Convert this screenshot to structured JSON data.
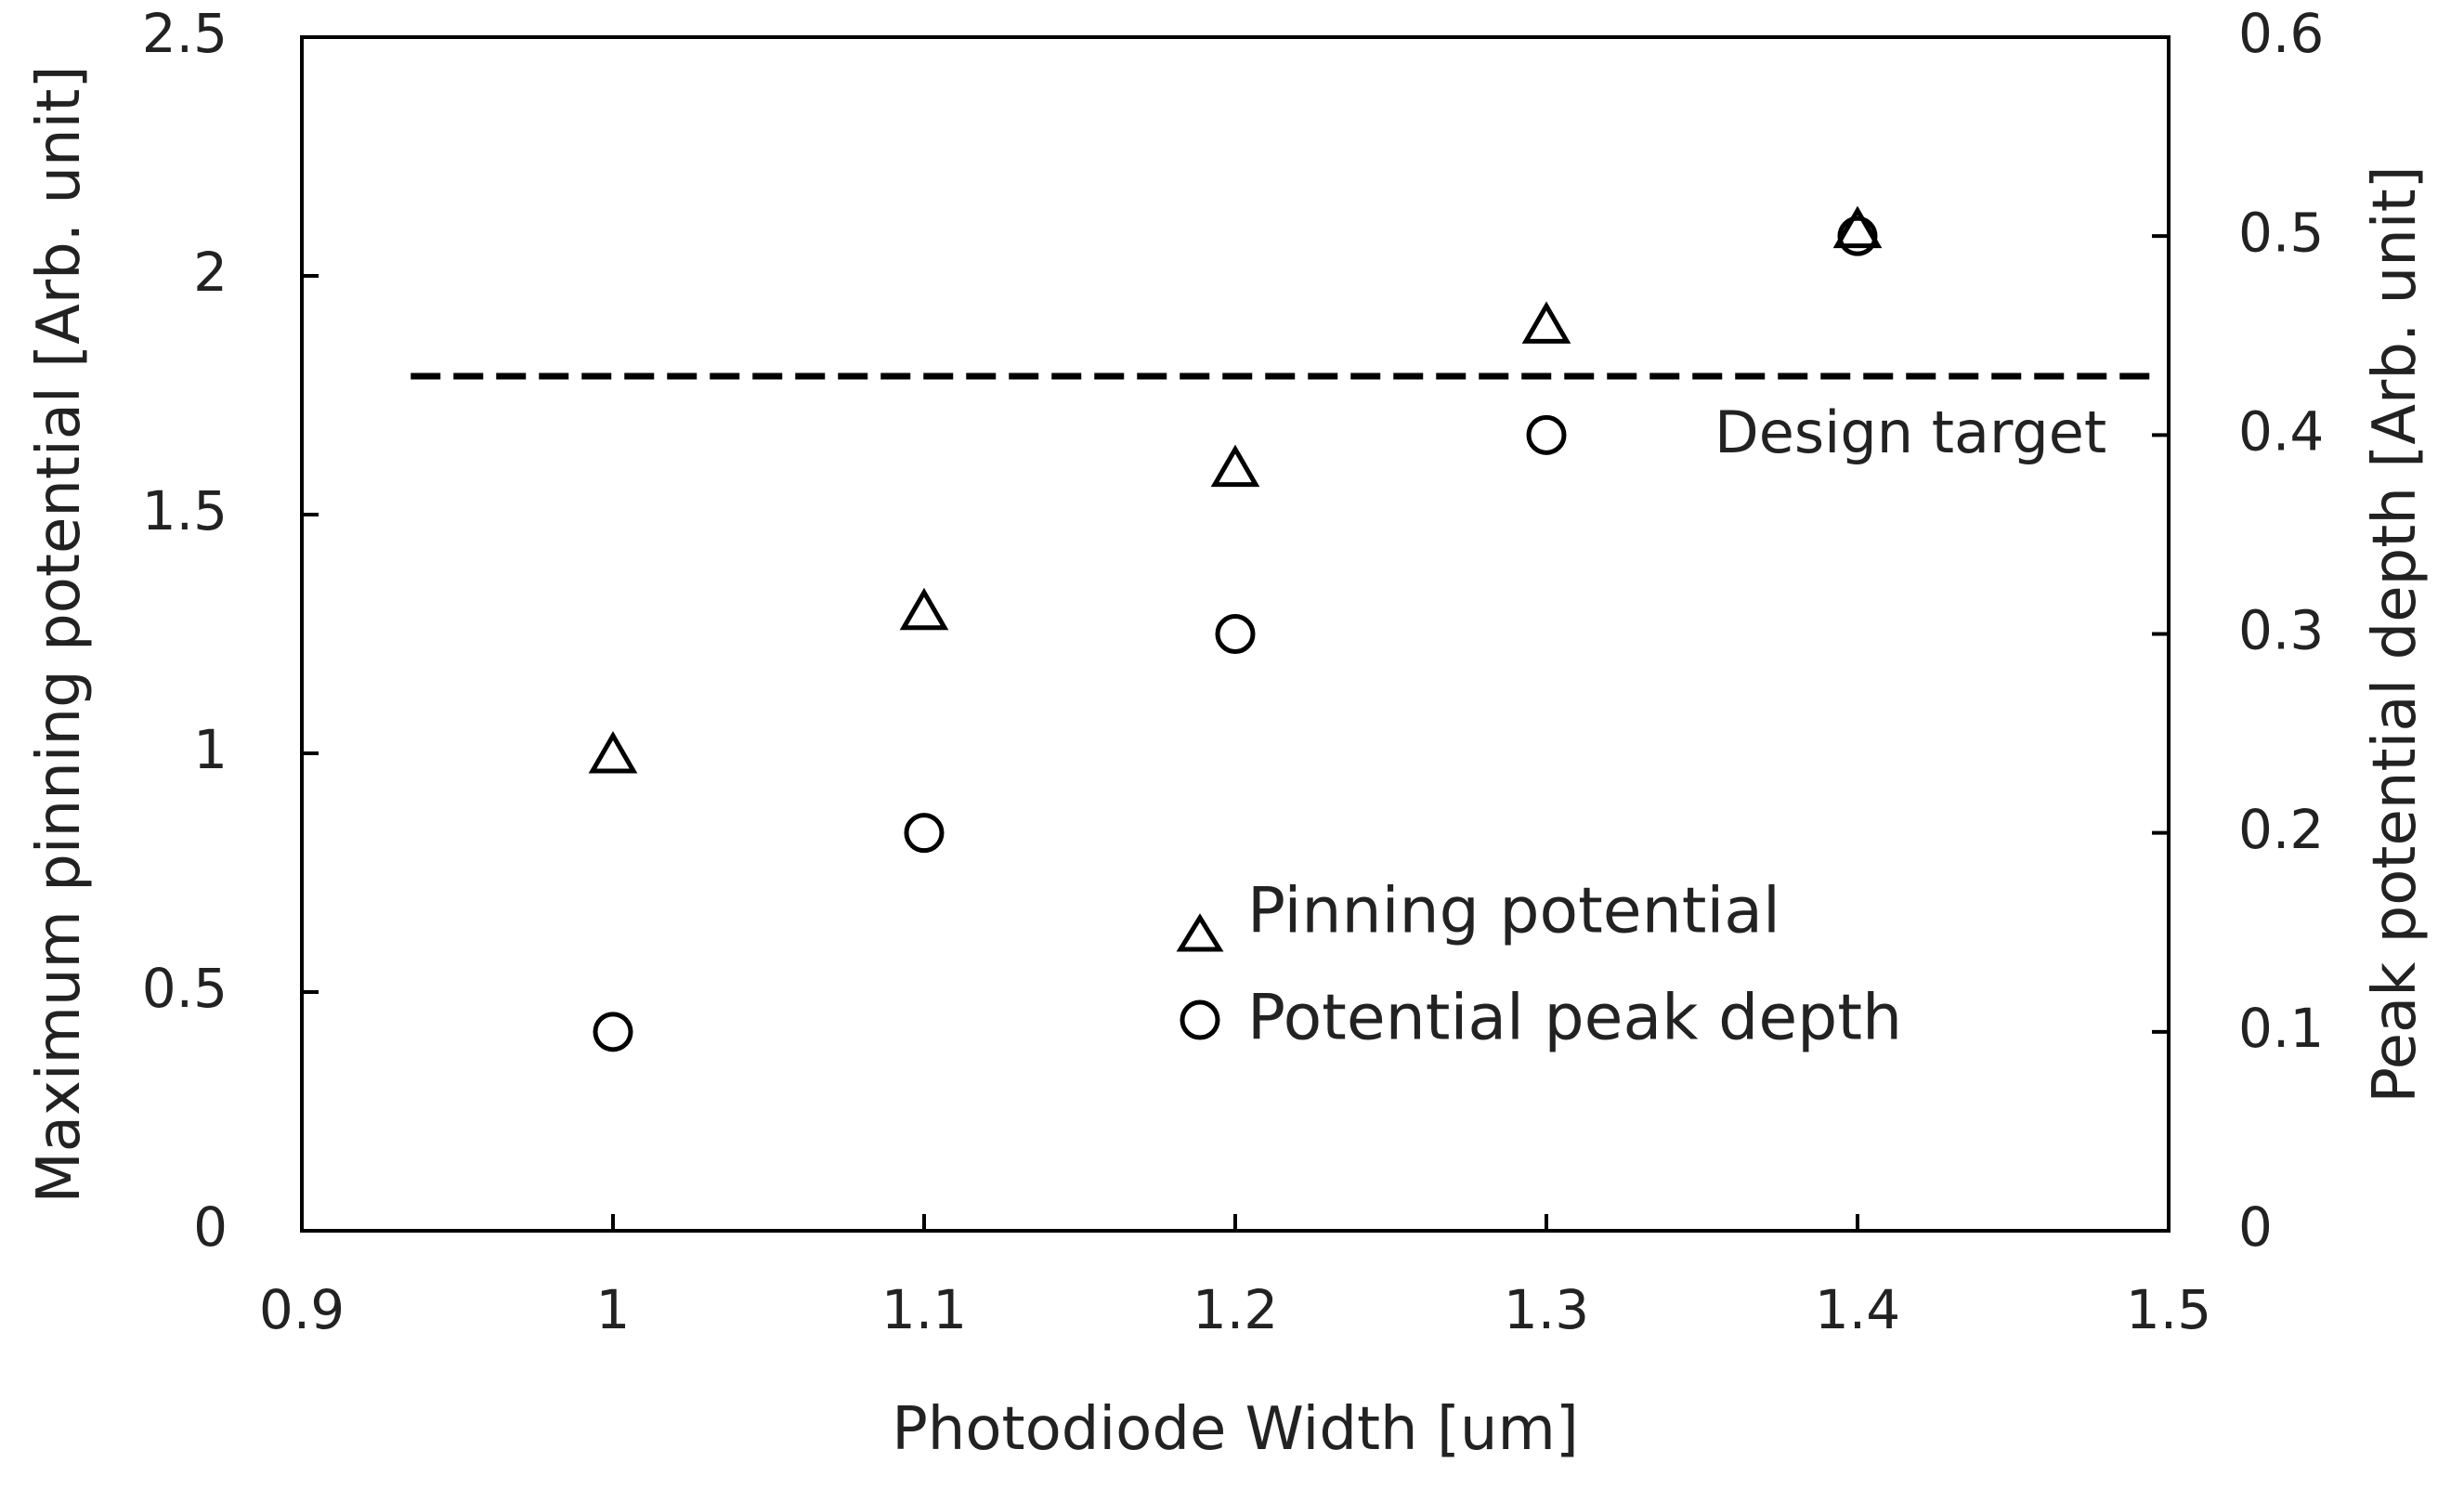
{
  "chart_data": {
    "type": "scatter",
    "title": "",
    "xlabel": "Photodiode Width [um]",
    "ylabel": "Maximum pinning potential [Arb. unit]",
    "y2label": "Peak potential depth [Arb. unit]",
    "xlim": [
      0.9,
      1.5
    ],
    "ylim": [
      0,
      2.5
    ],
    "y2lim": [
      0,
      0.6
    ],
    "xticks": [
      "0.9",
      "1",
      "1.1",
      "1.2",
      "1.3",
      "1.4",
      "1.5"
    ],
    "yticks": [
      "0",
      "0.5",
      "1",
      "1.5",
      "2",
      "2.5"
    ],
    "y2ticks": [
      "0",
      "0.1",
      "0.2",
      "0.3",
      "0.4",
      "0.5",
      "0.6"
    ],
    "grid": false,
    "legend_position": "bottom-center",
    "series": [
      {
        "name": "Pinning potential",
        "marker": "triangle",
        "axis": "left",
        "x": [
          1.0,
          1.1,
          1.2,
          1.3,
          1.4
        ],
        "y": [
          1.0,
          1.3,
          1.6,
          1.9,
          2.1
        ]
      },
      {
        "name": "Potential peak depth",
        "marker": "circle",
        "axis": "right",
        "x": [
          1.0,
          1.1,
          1.2,
          1.3,
          1.4
        ],
        "y": [
          0.1,
          0.2,
          0.3,
          0.4,
          0.5
        ]
      }
    ],
    "reference_line": {
      "label": "Design target",
      "axis": "left",
      "y": 1.79,
      "x_start": 0.935,
      "x_end": 1.495,
      "style": "dashed"
    },
    "colors": {
      "marker": "#111111",
      "axis": "#000000",
      "text": "#222222"
    }
  }
}
